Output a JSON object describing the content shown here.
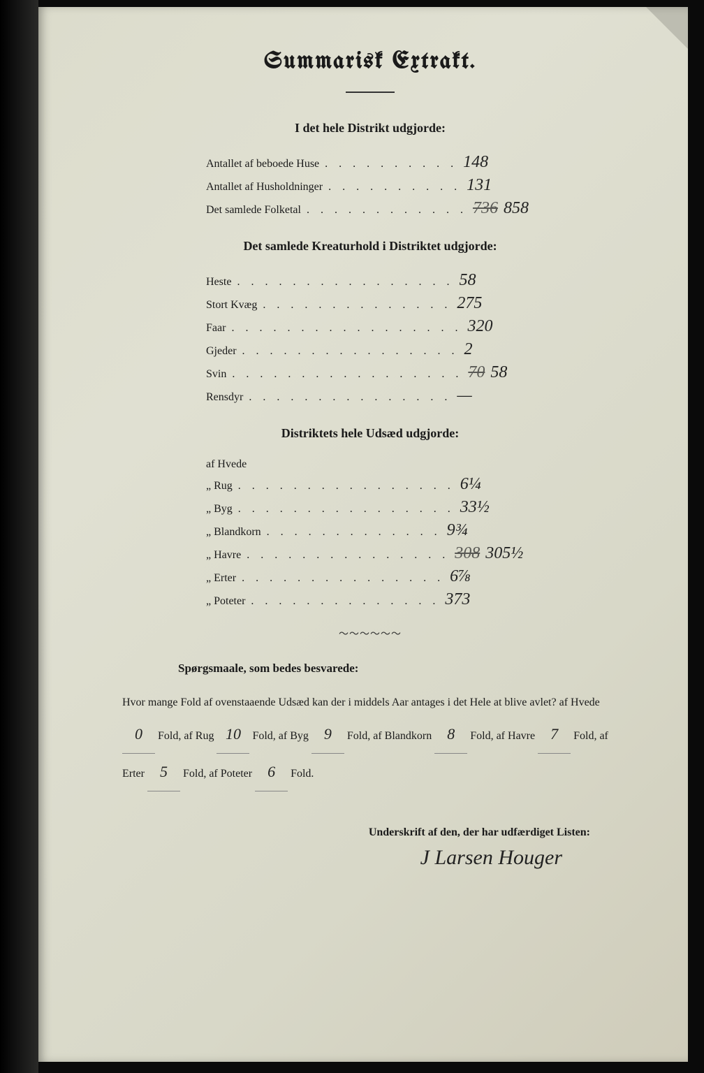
{
  "title": "Summarisk Extrakt.",
  "section1": {
    "heading": "I det hele Distrikt udgjorde:",
    "rows": [
      {
        "label": "Antallet af beboede Huse",
        "dots": ". . . . . . . . . .",
        "value": "148",
        "strike": ""
      },
      {
        "label": "Antallet af Husholdninger",
        "dots": ". . . . . . . . . .",
        "value": "131",
        "strike": ""
      },
      {
        "label": "Det samlede Folketal",
        "dots": ". . . . . . . . . . . .",
        "value": "858",
        "strike": "736"
      }
    ]
  },
  "section2": {
    "heading": "Det samlede Kreaturhold i Distriktet udgjorde:",
    "rows": [
      {
        "label": "Heste",
        "dots": ". . . . . . . . . . . . . . . .",
        "value": "58"
      },
      {
        "label": "Stort Kvæg",
        "dots": ". . . . . . . . . . . . . .",
        "value": "275"
      },
      {
        "label": "Faar",
        "dots": ". . . . . . . . . . . . . . . . .",
        "value": "320"
      },
      {
        "label": "Gjeder",
        "dots": ". . . . . . . . . . . . . . . .",
        "value": "2"
      },
      {
        "label": "Svin",
        "dots": ". . . . . . . . . . . . . . . . .",
        "value": "58",
        "strike": "70"
      },
      {
        "label": "Rensdyr",
        "dots": ". . . . . . . . . . . . . . .",
        "value": "—"
      }
    ]
  },
  "section3": {
    "heading": "Distriktets hele Udsæd udgjorde:",
    "rows": [
      {
        "label": "af Hvede",
        "dots": "",
        "value": ""
      },
      {
        "label": "„  Rug",
        "dots": ". . . . . . . . . . . . . . . .",
        "value": "6¼"
      },
      {
        "label": "„  Byg",
        "dots": ". . . . . . . . . . . . . . . .",
        "value": "33½"
      },
      {
        "label": "„  Blandkorn",
        "dots": ". . . . . . . . . . . . .",
        "value": "9¾"
      },
      {
        "label": "„  Havre",
        "dots": ". . . . . . . . . . . . . . .",
        "value": "305½",
        "strike": "308"
      },
      {
        "label": "„  Erter",
        "dots": ". . . . . . . . . . . . . . .",
        "value": "6⅞"
      },
      {
        "label": "„  Poteter",
        "dots": ". . . . . . . . . . . . . .",
        "value": "373"
      }
    ]
  },
  "questions": {
    "heading": "Spørgsmaale, som bedes besvarede:",
    "intro": "Hvor mange Fold af ovenstaaende Udsæd kan der i middels Aar antages i det Hele at blive avlet?",
    "items": [
      {
        "crop": "af Hvede",
        "val": "0",
        "unit": "Fold,"
      },
      {
        "crop": "af Rug",
        "val": "10",
        "unit": "Fold,"
      },
      {
        "crop": "af Byg",
        "val": "9",
        "unit": "Fold,"
      },
      {
        "crop": "af Blandkorn",
        "val": "8",
        "unit": "Fold,"
      },
      {
        "crop": "af Havre",
        "val": "7",
        "unit": "Fold,"
      },
      {
        "crop": "af Erter",
        "val": "5",
        "unit": "Fold,"
      },
      {
        "crop": "af Poteter",
        "val": "6",
        "unit": "Fold."
      }
    ]
  },
  "signature": {
    "label": "Underskrift af den, der har udfærdiget Listen:",
    "name": "J Larsen Houger"
  }
}
